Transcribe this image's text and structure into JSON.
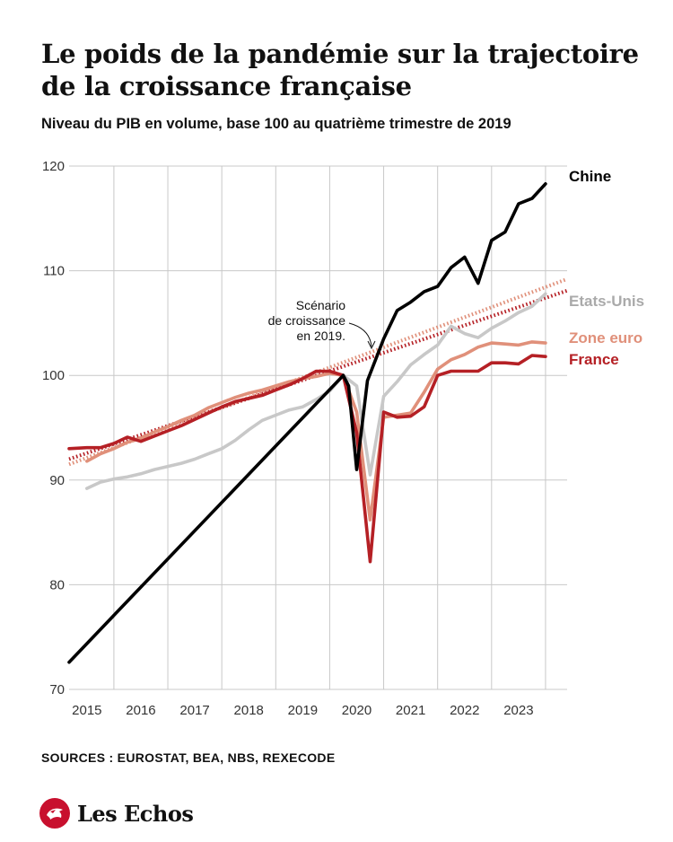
{
  "header": {
    "title": "Le poids de la pandémie sur la trajectoire de la croissance française",
    "subtitle": "Niveau du PIB en volume, base 100 au quatrième trimestre de 2019"
  },
  "footer": {
    "sources": "SOURCES : EUROSTAT, BEA, NBS, REXECODE",
    "brand": "Les Echos"
  },
  "colors": {
    "chine": "#000000",
    "etats_unis": "#c8c8c8",
    "zone_euro": "#e0907a",
    "france": "#b52025",
    "scenario_us": "#e0907a",
    "scenario_fr": "#b52025",
    "grid": "#c8c8c8",
    "brand_red": "#c8102e"
  },
  "chart_data": {
    "type": "line",
    "title": "Le poids de la pandémie sur la trajectoire de la croissance française",
    "subtitle": "Niveau du PIB en volume, base 100 au quatrième trimestre de 2019",
    "ylim": [
      70,
      120
    ],
    "yticks": [
      70,
      80,
      90,
      100,
      110,
      120
    ],
    "xlim": [
      2014.67,
      2023.9
    ],
    "year_ticks": [
      "2015",
      "2016",
      "2017",
      "2018",
      "2019",
      "2020",
      "2021",
      "2022",
      "2023"
    ],
    "grid": true,
    "legend": "direct labels at right end of each series",
    "annotation": {
      "lines": [
        "Scénario",
        "de croissance",
        "en 2019."
      ]
    },
    "series": [
      {
        "name": "Chine",
        "color": "#000000",
        "points": [
          [
            2014.67,
            72.6
          ],
          [
            2019.75,
            100.0
          ],
          [
            2019.85,
            99.0
          ],
          [
            2020.0,
            91.0
          ],
          [
            2020.2,
            99.5
          ],
          [
            2020.5,
            103.5
          ],
          [
            2020.75,
            106.2
          ],
          [
            2021.0,
            107.0
          ],
          [
            2021.25,
            108.0
          ],
          [
            2021.5,
            108.5
          ],
          [
            2021.75,
            110.3
          ],
          [
            2022.0,
            111.3
          ],
          [
            2022.25,
            108.8
          ],
          [
            2022.5,
            112.9
          ],
          [
            2022.75,
            113.7
          ],
          [
            2023.0,
            116.4
          ],
          [
            2023.25,
            116.9
          ],
          [
            2023.5,
            118.3
          ]
        ]
      },
      {
        "name": "Etats-Unis",
        "color": "#c8c8c8",
        "points": [
          [
            2015.0,
            89.2
          ],
          [
            2015.25,
            89.8
          ],
          [
            2015.5,
            90.1
          ],
          [
            2015.75,
            90.3
          ],
          [
            2016.0,
            90.6
          ],
          [
            2016.25,
            91.0
          ],
          [
            2016.5,
            91.3
          ],
          [
            2016.75,
            91.6
          ],
          [
            2017.0,
            92.0
          ],
          [
            2017.25,
            92.5
          ],
          [
            2017.5,
            93.0
          ],
          [
            2017.75,
            93.8
          ],
          [
            2018.0,
            94.8
          ],
          [
            2018.25,
            95.7
          ],
          [
            2018.5,
            96.2
          ],
          [
            2018.75,
            96.7
          ],
          [
            2019.0,
            97.0
          ],
          [
            2019.25,
            97.7
          ],
          [
            2019.5,
            98.5
          ],
          [
            2019.75,
            100.0
          ],
          [
            2020.0,
            99.0
          ],
          [
            2020.25,
            90.5
          ],
          [
            2020.5,
            98.0
          ],
          [
            2020.75,
            99.4
          ],
          [
            2021.0,
            101.0
          ],
          [
            2021.25,
            102.0
          ],
          [
            2021.5,
            102.9
          ],
          [
            2021.75,
            104.7
          ],
          [
            2022.0,
            104.0
          ],
          [
            2022.25,
            103.6
          ],
          [
            2022.5,
            104.5
          ],
          [
            2022.75,
            105.2
          ],
          [
            2023.0,
            106.0
          ],
          [
            2023.25,
            106.6
          ],
          [
            2023.5,
            107.8
          ]
        ]
      },
      {
        "name": "Zone euro",
        "color": "#e0907a",
        "points": [
          [
            2015.0,
            91.8
          ],
          [
            2015.25,
            92.5
          ],
          [
            2015.5,
            93.0
          ],
          [
            2015.75,
            93.6
          ],
          [
            2016.0,
            94.0
          ],
          [
            2016.25,
            94.6
          ],
          [
            2016.5,
            95.1
          ],
          [
            2016.75,
            95.7
          ],
          [
            2017.0,
            96.2
          ],
          [
            2017.25,
            96.9
          ],
          [
            2017.5,
            97.4
          ],
          [
            2017.75,
            97.9
          ],
          [
            2018.0,
            98.3
          ],
          [
            2018.25,
            98.6
          ],
          [
            2018.5,
            99.0
          ],
          [
            2018.75,
            99.4
          ],
          [
            2019.0,
            99.7
          ],
          [
            2019.25,
            99.9
          ],
          [
            2019.5,
            100.2
          ],
          [
            2019.75,
            100.0
          ],
          [
            2020.0,
            96.5
          ],
          [
            2020.25,
            86.2
          ],
          [
            2020.5,
            96.0
          ],
          [
            2020.75,
            96.2
          ],
          [
            2021.0,
            96.4
          ],
          [
            2021.25,
            98.4
          ],
          [
            2021.5,
            100.6
          ],
          [
            2021.75,
            101.5
          ],
          [
            2022.0,
            102.0
          ],
          [
            2022.25,
            102.7
          ],
          [
            2022.5,
            103.1
          ],
          [
            2022.75,
            103.0
          ],
          [
            2023.0,
            102.9
          ],
          [
            2023.25,
            103.2
          ],
          [
            2023.5,
            103.1
          ]
        ]
      },
      {
        "name": "France",
        "color": "#b52025",
        "points": [
          [
            2014.67,
            93.0
          ],
          [
            2015.0,
            93.1
          ],
          [
            2015.25,
            93.1
          ],
          [
            2015.5,
            93.5
          ],
          [
            2015.75,
            94.1
          ],
          [
            2016.0,
            93.7
          ],
          [
            2016.25,
            94.2
          ],
          [
            2016.5,
            94.7
          ],
          [
            2016.75,
            95.2
          ],
          [
            2017.0,
            95.8
          ],
          [
            2017.25,
            96.4
          ],
          [
            2017.5,
            97.0
          ],
          [
            2017.75,
            97.5
          ],
          [
            2018.0,
            97.8
          ],
          [
            2018.25,
            98.1
          ],
          [
            2018.5,
            98.6
          ],
          [
            2018.75,
            99.1
          ],
          [
            2019.0,
            99.7
          ],
          [
            2019.25,
            100.4
          ],
          [
            2019.5,
            100.4
          ],
          [
            2019.75,
            100.0
          ],
          [
            2020.0,
            94.5
          ],
          [
            2020.25,
            82.2
          ],
          [
            2020.5,
            96.5
          ],
          [
            2020.75,
            96.0
          ],
          [
            2021.0,
            96.1
          ],
          [
            2021.25,
            97.0
          ],
          [
            2021.5,
            100.0
          ],
          [
            2021.75,
            100.4
          ],
          [
            2022.0,
            100.4
          ],
          [
            2022.25,
            100.4
          ],
          [
            2022.5,
            101.2
          ],
          [
            2022.75,
            101.2
          ],
          [
            2023.0,
            101.1
          ],
          [
            2023.25,
            101.9
          ],
          [
            2023.5,
            101.8
          ]
        ]
      },
      {
        "color": "#e0907a",
        "style": "dotted",
        "points": [
          [
            2014.67,
            91.5
          ],
          [
            2023.9,
            109.2
          ]
        ]
      },
      {
        "color": "#b52025",
        "style": "dotted",
        "points": [
          [
            2014.67,
            92.0
          ],
          [
            2023.9,
            108.1
          ]
        ]
      }
    ]
  }
}
